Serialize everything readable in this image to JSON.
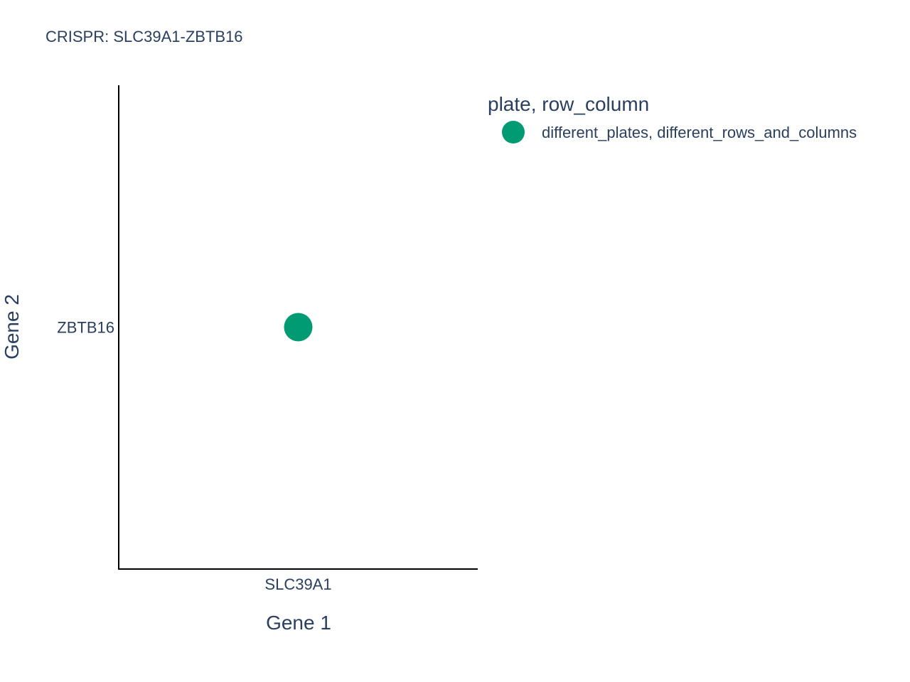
{
  "chart_data": {
    "type": "scatter",
    "title": "CRISPR: SLC39A1-ZBTB16",
    "xlabel": "Gene 1",
    "ylabel": "Gene 2",
    "x_categories": [
      "SLC39A1"
    ],
    "y_categories": [
      "ZBTB16"
    ],
    "grid": false,
    "legend": {
      "title": "plate, row_column",
      "placement": "top-right"
    },
    "series": [
      {
        "name": "different_plates, different_rows_and_columns",
        "color": "#009b72",
        "points": [
          {
            "x": "SLC39A1",
            "y": "ZBTB16"
          }
        ]
      }
    ]
  }
}
